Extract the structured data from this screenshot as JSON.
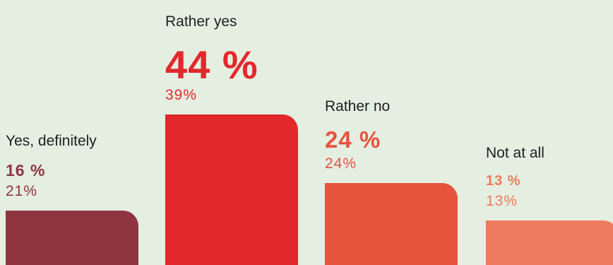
{
  "chart_data": {
    "type": "bar",
    "title": "",
    "xlabel": "",
    "ylabel": "",
    "categories": [
      "Yes, definitely",
      "Rather yes",
      "Rather no",
      "Not at all"
    ],
    "series": [
      {
        "values": [
          16,
          44,
          24,
          13
        ]
      },
      {
        "values": [
          21,
          39,
          24,
          13
        ]
      }
    ],
    "colors": [
      "#8e3540",
      "#e3282b",
      "#e8533e",
      "#ef7b5e"
    ],
    "main_labels": [
      "16 %",
      "44 %",
      "24 %",
      "13 %"
    ],
    "secondary_labels": [
      "21%",
      "39%",
      "24%",
      "13%"
    ],
    "ylim": [
      0,
      44
    ],
    "grid": false,
    "legend": "none"
  }
}
